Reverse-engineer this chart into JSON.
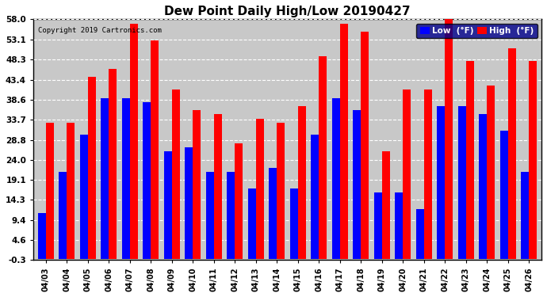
{
  "title": "Dew Point Daily High/Low 20190427",
  "copyright": "Copyright 2019 Cartronics.com",
  "categories": [
    "04/03",
    "04/04",
    "04/05",
    "04/06",
    "04/07",
    "04/08",
    "04/09",
    "04/10",
    "04/11",
    "04/12",
    "04/13",
    "04/14",
    "04/15",
    "04/16",
    "04/17",
    "04/18",
    "04/19",
    "04/20",
    "04/21",
    "04/22",
    "04/23",
    "04/24",
    "04/25",
    "04/26"
  ],
  "low_values": [
    11.0,
    21.0,
    30.0,
    39.0,
    39.0,
    38.0,
    26.0,
    27.0,
    21.0,
    21.0,
    17.0,
    22.0,
    17.0,
    30.0,
    39.0,
    36.0,
    16.0,
    16.0,
    12.0,
    37.0,
    37.0,
    35.0,
    31.0,
    21.0
  ],
  "high_values": [
    33.0,
    33.0,
    44.0,
    46.0,
    57.0,
    53.0,
    41.0,
    36.0,
    35.0,
    28.0,
    34.0,
    33.0,
    37.0,
    49.0,
    57.0,
    55.0,
    26.0,
    41.0,
    41.0,
    58.0,
    48.0,
    42.0,
    51.0,
    48.0
  ],
  "low_color": "#0000ff",
  "high_color": "#ff0000",
  "bg_color": "#ffffff",
  "plot_bg_color": "#c8c8c8",
  "grid_color": "#ffffff",
  "ylim_min": -0.3,
  "ylim_max": 58.0,
  "yticks": [
    -0.3,
    4.6,
    9.4,
    14.3,
    19.1,
    24.0,
    28.8,
    33.7,
    38.6,
    43.4,
    48.3,
    53.1,
    58.0
  ],
  "title_fontsize": 11,
  "axis_fontsize": 7,
  "tick_fontsize": 7.5,
  "legend_low_label": "Low  (°F)",
  "legend_high_label": "High  (°F)"
}
